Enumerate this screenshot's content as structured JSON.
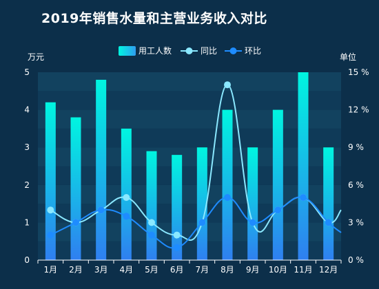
{
  "chart_data": {
    "type": "bar",
    "title": "2019年销售水量和主营业务收入对比",
    "categories": [
      "1月",
      "2月",
      "3月",
      "4月",
      "5月",
      "6月",
      "7月",
      "8月",
      "9月",
      "10月",
      "11月",
      "12月"
    ],
    "y_left": {
      "label": "万元",
      "min": 0,
      "max": 5,
      "ticks": [
        "0",
        "1",
        "2",
        "3",
        "4",
        "5"
      ]
    },
    "y_right": {
      "label": "单位",
      "min": 0,
      "max": 15,
      "ticks": [
        "0 %",
        "3 %",
        "6 %",
        "9 %",
        "12 %",
        "15 %"
      ],
      "unit": "%"
    },
    "series": [
      {
        "name": "用工人数",
        "type": "bar",
        "axis": "left",
        "values": [
          4.2,
          3.8,
          4.8,
          3.5,
          2.9,
          2.8,
          3.0,
          4.0,
          3.0,
          4.0,
          5.0,
          3.0
        ],
        "color_top": "#00f5e0",
        "color_bottom": "#2f7ff0"
      },
      {
        "name": "同比",
        "type": "line",
        "axis": "right",
        "smooth": true,
        "values": [
          4,
          3,
          4,
          5,
          3,
          2,
          3,
          14,
          3,
          4,
          5,
          3
        ],
        "end_value": 4,
        "color": "#8ae8ff"
      },
      {
        "name": "环比",
        "type": "line",
        "axis": "right",
        "smooth": true,
        "values": [
          2,
          3,
          4,
          3.5,
          2,
          1,
          3,
          5,
          3,
          4,
          5,
          3
        ],
        "end_value": 2.2,
        "color": "#1e8cff"
      }
    ],
    "legend": {
      "position": "top-center"
    },
    "grid": true
  }
}
